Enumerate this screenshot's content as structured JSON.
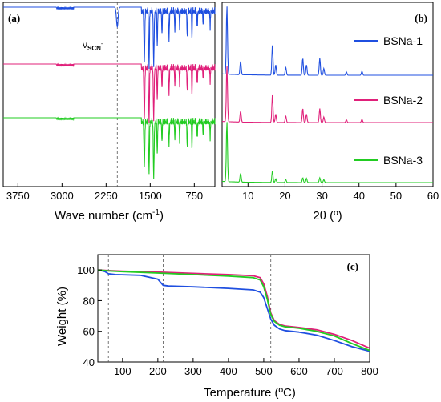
{
  "chart_data": [
    {
      "panel": "(a)",
      "type": "line",
      "xlabel": "Wave number (cm-1)",
      "xlabel_main": "Wave number (cm",
      "xlabel_sup": "-1",
      "xlabel_end": ")",
      "xlim": [
        4000,
        400
      ],
      "xticks": [
        3750,
        3000,
        2250,
        1500,
        750
      ],
      "annotation": "νSCN-",
      "annotation_main": "ν",
      "annotation_sub": "SCN",
      "annotation_sup": "-",
      "annotation_x": 2060,
      "series": [
        {
          "color": "#1f4fe0",
          "offset": 2,
          "features": [
            [
              2060,
              0.35,
              20
            ],
            [
              1600,
              0.9,
              10
            ],
            [
              1520,
              1.0,
              9
            ],
            [
              1440,
              0.95,
              10
            ],
            [
              1380,
              0.6,
              8
            ],
            [
              1300,
              0.4,
              7
            ],
            [
              1180,
              0.5,
              8
            ],
            [
              1080,
              0.35,
              7
            ],
            [
              1000,
              0.3,
              6
            ],
            [
              870,
              0.45,
              8
            ],
            [
              790,
              0.5,
              7
            ],
            [
              700,
              0.3,
              7
            ],
            [
              600,
              0.25,
              6
            ],
            [
              480,
              0.3,
              6
            ]
          ]
        },
        {
          "color": "#e0207a",
          "offset": 1,
          "features": [
            [
              1600,
              0.9,
              10
            ],
            [
              1520,
              0.95,
              9
            ],
            [
              1440,
              0.9,
              10
            ],
            [
              1380,
              0.55,
              8
            ],
            [
              1300,
              0.35,
              7
            ],
            [
              1180,
              0.45,
              8
            ],
            [
              1080,
              0.3,
              7
            ],
            [
              1000,
              0.3,
              6
            ],
            [
              870,
              0.4,
              8
            ],
            [
              790,
              0.5,
              7
            ],
            [
              700,
              0.3,
              7
            ],
            [
              600,
              0.2,
              6
            ],
            [
              480,
              0.25,
              6
            ]
          ]
        },
        {
          "color": "#22cc22",
          "offset": 0,
          "features": [
            [
              1600,
              0.8,
              10
            ],
            [
              1520,
              0.9,
              9
            ],
            [
              1440,
              1.0,
              10
            ],
            [
              1380,
              0.55,
              8
            ],
            [
              1300,
              0.35,
              7
            ],
            [
              1180,
              0.4,
              8
            ],
            [
              1080,
              0.3,
              7
            ],
            [
              1000,
              0.35,
              6
            ],
            [
              870,
              0.45,
              8
            ],
            [
              790,
              0.5,
              7
            ],
            [
              700,
              0.3,
              7
            ],
            [
              600,
              0.25,
              6
            ],
            [
              480,
              0.3,
              6
            ]
          ]
        }
      ]
    },
    {
      "panel": "(b)",
      "type": "line",
      "xlabel": "2θ (º)",
      "xlim": [
        3,
        60
      ],
      "xticks": [
        10,
        20,
        30,
        40,
        50,
        60
      ],
      "legend": [
        "BSNa-1",
        "BSNa-2",
        "BSNa-3"
      ],
      "series": [
        {
          "name": "BSNa-1",
          "color": "#1f4fe0",
          "offset": 2,
          "amplitude": 1.0,
          "peaks": [
            [
              4.3,
              1.0
            ],
            [
              8.0,
              0.2
            ],
            [
              16.6,
              0.45
            ],
            [
              17.5,
              0.15
            ],
            [
              20.2,
              0.12
            ],
            [
              24.8,
              0.25
            ],
            [
              25.8,
              0.15
            ],
            [
              29.4,
              0.25
            ],
            [
              30.5,
              0.1
            ],
            [
              36.6,
              0.05
            ],
            [
              40.8,
              0.06
            ]
          ]
        },
        {
          "name": "BSNa-2",
          "color": "#e0207a",
          "offset": 1,
          "amplitude": 1.0,
          "peaks": [
            [
              4.3,
              1.0
            ],
            [
              8.0,
              0.2
            ],
            [
              16.6,
              0.5
            ],
            [
              17.5,
              0.15
            ],
            [
              20.2,
              0.12
            ],
            [
              24.8,
              0.25
            ],
            [
              25.8,
              0.15
            ],
            [
              29.4,
              0.25
            ],
            [
              30.5,
              0.1
            ],
            [
              36.6,
              0.05
            ],
            [
              40.8,
              0.06
            ]
          ]
        },
        {
          "name": "BSNa-3",
          "color": "#22cc22",
          "offset": 0,
          "amplitude": 1.0,
          "peaks": [
            [
              4.3,
              1.0
            ],
            [
              8.0,
              0.15
            ],
            [
              16.6,
              0.2
            ],
            [
              17.5,
              0.06
            ],
            [
              20.2,
              0.05
            ],
            [
              24.8,
              0.08
            ],
            [
              25.8,
              0.07
            ],
            [
              29.4,
              0.08
            ],
            [
              30.5,
              0.05
            ]
          ]
        }
      ]
    },
    {
      "panel": "(c)",
      "type": "line",
      "xlabel": "Temperature (ºC)",
      "ylabel": "Weight (%)",
      "xlim": [
        30,
        800
      ],
      "ylim": [
        40,
        110
      ],
      "xticks": [
        100,
        200,
        300,
        400,
        500,
        600,
        700,
        800
      ],
      "yticks": [
        40,
        60,
        80,
        100
      ],
      "dashed_x": [
        60,
        215,
        520
      ],
      "series": [
        {
          "color": "#1f4fe0",
          "x": [
            30,
            50,
            60,
            80,
            150,
            200,
            215,
            230,
            300,
            400,
            470,
            490,
            500,
            510,
            520,
            530,
            545,
            560,
            600,
            650,
            700,
            750,
            800
          ],
          "y": [
            100,
            99,
            97.5,
            97,
            96.5,
            94,
            90,
            89.5,
            89,
            88,
            87,
            85.5,
            82,
            75,
            68,
            64,
            61.5,
            60.5,
            59.5,
            57.5,
            54,
            50,
            47
          ]
        },
        {
          "color": "#e0207a",
          "x": [
            30,
            60,
            100,
            200,
            300,
            400,
            470,
            490,
            500,
            510,
            520,
            530,
            545,
            560,
            600,
            650,
            700,
            750,
            800
          ],
          "y": [
            100,
            99.6,
            99.2,
            98.6,
            97.8,
            97,
            96.2,
            95,
            91,
            83,
            72,
            67,
            64.5,
            63.5,
            62.5,
            61,
            58,
            54,
            49
          ]
        },
        {
          "color": "#22cc22",
          "x": [
            30,
            60,
            100,
            200,
            300,
            400,
            470,
            490,
            500,
            510,
            520,
            530,
            545,
            560,
            600,
            650,
            700,
            750,
            800
          ],
          "y": [
            100,
            99.4,
            98.9,
            98,
            97,
            96,
            95,
            93.5,
            89,
            81,
            71,
            66.5,
            64,
            63,
            62,
            60,
            57,
            52,
            47.5
          ]
        }
      ]
    }
  ],
  "labels": {
    "panel_a": "(a)",
    "panel_b": "(b)",
    "panel_c": "(c)"
  }
}
